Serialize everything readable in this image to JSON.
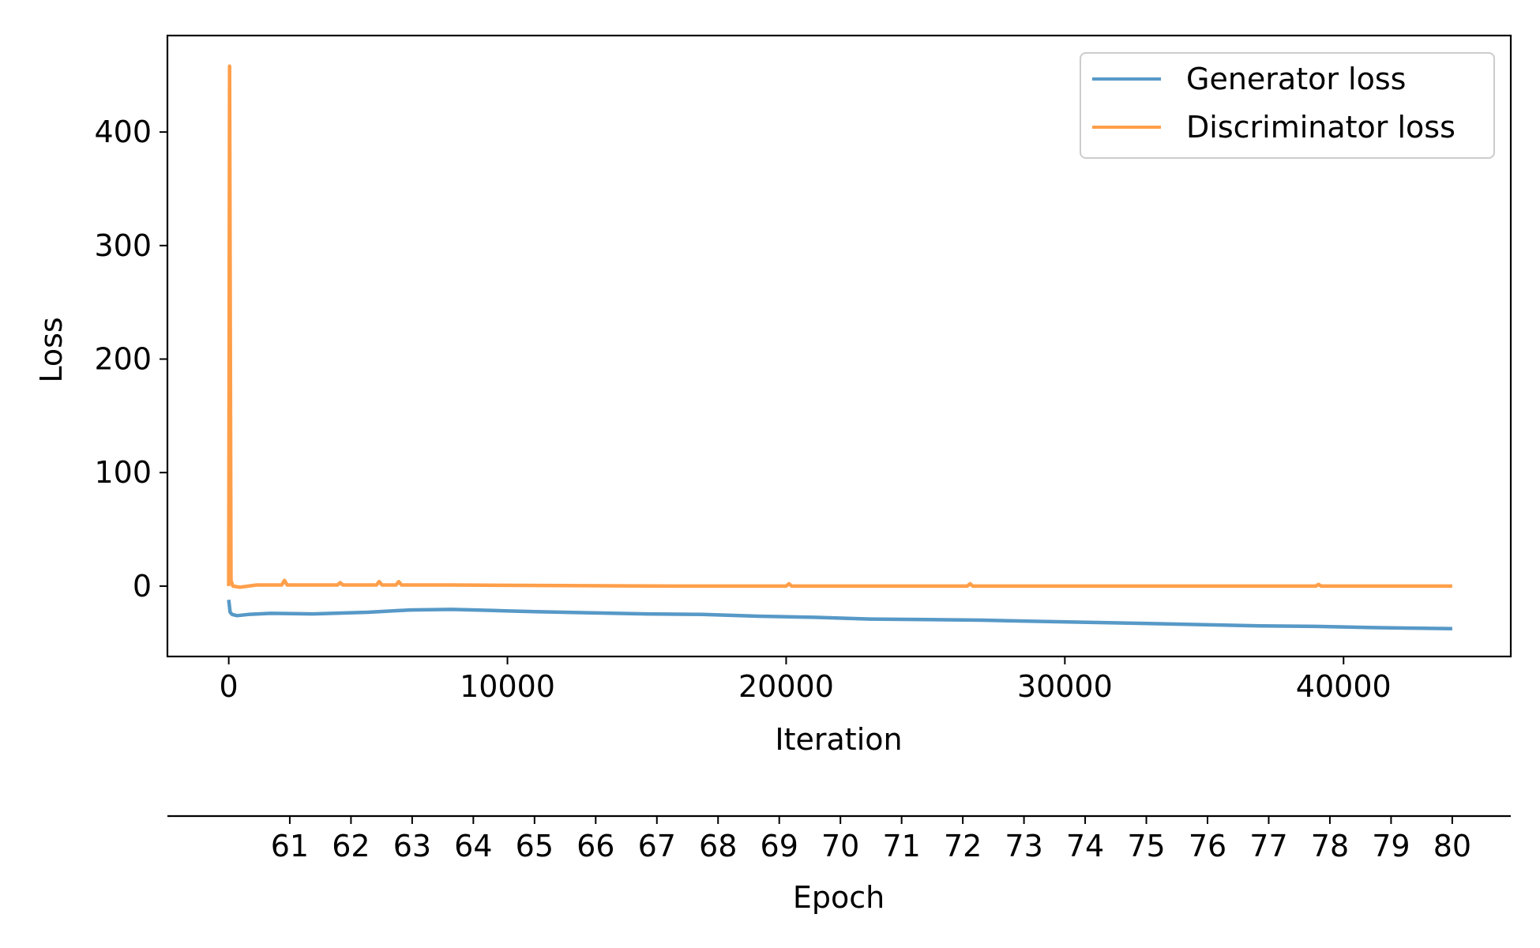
{
  "chart_data": {
    "type": "line",
    "title": "",
    "xlabel": "Iteration",
    "ylabel": "Loss",
    "xlim": [
      -2200,
      46000
    ],
    "ylim": [
      -62,
      485
    ],
    "x_ticks": [
      0,
      10000,
      20000,
      30000,
      40000
    ],
    "x_tick_labels": [
      "0",
      "10000",
      "20000",
      "30000",
      "40000"
    ],
    "y_ticks": [
      0,
      100,
      200,
      300,
      400
    ],
    "y_tick_labels": [
      "0",
      "100",
      "200",
      "300",
      "400"
    ],
    "grid": false,
    "legend_position": "top-right",
    "series": [
      {
        "name": "Generator loss",
        "color": "#5799c7",
        "x": [
          0,
          50,
          120,
          300,
          700,
          1500,
          3000,
          5000,
          6500,
          8000,
          9500,
          11000,
          13000,
          15000,
          17000,
          19000,
          21000,
          23000,
          25000,
          27000,
          29000,
          31000,
          33000,
          35000,
          37000,
          39000,
          41000,
          42500,
          43900
        ],
        "values": [
          -12,
          -23,
          -25,
          -26,
          -25,
          -24,
          -24.5,
          -23,
          -21,
          -20.5,
          -21.5,
          -22.5,
          -23.5,
          -24.5,
          -25,
          -26.5,
          -27.5,
          -29,
          -29.5,
          -30,
          -31,
          -32,
          -33,
          -34,
          -35,
          -35.5,
          -36.5,
          -37,
          -37.5
        ]
      },
      {
        "name": "Discriminator loss",
        "color": "#ff9f4a",
        "x": [
          0,
          30,
          80,
          150,
          400,
          1000,
          1900,
          2000,
          2100,
          3000,
          3900,
          4000,
          4100,
          5300,
          5400,
          5500,
          6000,
          6100,
          6200,
          8000,
          12000,
          16000,
          20000,
          20100,
          20200,
          24000,
          26500,
          26600,
          26700,
          30000,
          34000,
          38000,
          39000,
          39100,
          39200,
          42000,
          43900
        ],
        "values": [
          0,
          458,
          5,
          0,
          -1,
          1,
          1,
          5,
          1,
          1,
          1,
          3,
          1,
          1,
          4,
          1,
          1,
          4,
          1,
          1,
          0.5,
          0,
          0,
          2,
          0,
          0,
          0,
          2,
          0,
          0,
          0,
          0,
          0,
          1.5,
          0,
          0,
          0
        ]
      }
    ],
    "secondary_x_axis": {
      "label": "Epoch",
      "position": "bottom",
      "ticks": [
        61,
        62,
        63,
        64,
        65,
        66,
        67,
        68,
        69,
        70,
        71,
        72,
        73,
        74,
        75,
        76,
        77,
        78,
        79,
        80
      ],
      "tick_labels": [
        "61",
        "62",
        "63",
        "64",
        "65",
        "66",
        "67",
        "68",
        "69",
        "70",
        "71",
        "72",
        "73",
        "74",
        "75",
        "76",
        "77",
        "78",
        "79",
        "80"
      ],
      "range": [
        59,
        80
      ]
    }
  }
}
